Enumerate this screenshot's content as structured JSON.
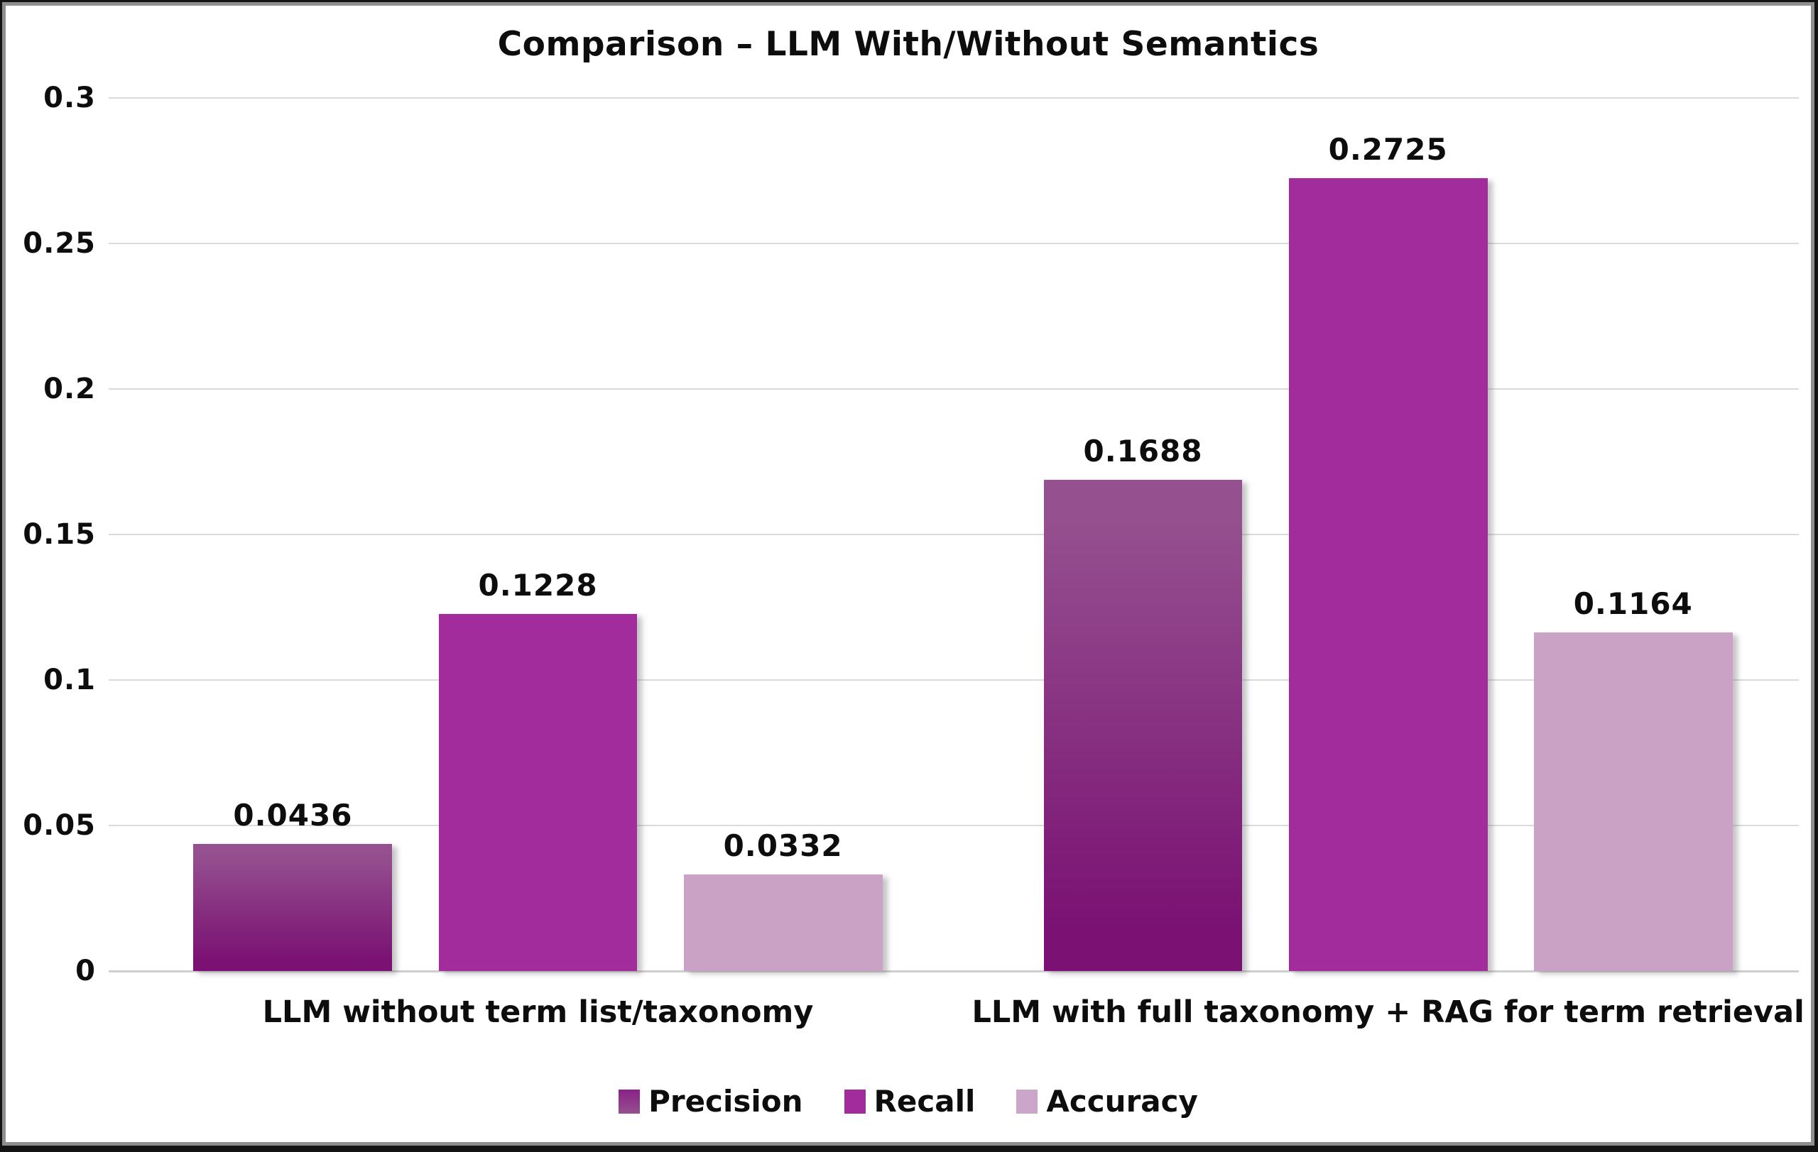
{
  "chart_data": {
    "type": "bar",
    "title": "Comparison – LLM With/Without Semantics",
    "categories": [
      "LLM without term list/taxonomy",
      "LLM with full taxonomy + RAG for term retrieval"
    ],
    "series": [
      {
        "name": "Precision",
        "values": [
          0.0436,
          0.1688
        ],
        "labels": [
          "0.0436",
          "0.1688"
        ],
        "fill_style": "vertical-gradient",
        "color_top": "#95508F",
        "color_bottom": "#7A1173",
        "legend_color": "#8A2188"
      },
      {
        "name": "Recall",
        "values": [
          0.1228,
          0.2725
        ],
        "labels": [
          "0.1228",
          "0.2725"
        ],
        "fill_style": "solid",
        "color": "#A32C9C",
        "legend_color": "#A32C9C"
      },
      {
        "name": "Accuracy",
        "values": [
          0.0332,
          0.1164
        ],
        "labels": [
          "0.0332",
          "0.1164"
        ],
        "fill_style": "solid",
        "color": "#C9A2C6",
        "legend_color": "#CBA6CA"
      }
    ],
    "y_axis": {
      "min": 0,
      "max": 0.3,
      "tick_values": [
        0.3,
        0.25,
        0.2,
        0.15,
        0.1,
        0.05,
        0
      ],
      "tick_labels": [
        "0.3",
        "0.25",
        "0.2",
        "0.15",
        "0.1",
        "0.05",
        "0"
      ]
    },
    "grid": true,
    "legend_position": "bottom"
  },
  "colors": {
    "background": "#ffffff",
    "text": "#0d0d0d",
    "gridline": "#dadada",
    "baseline": "#cfcfcf",
    "frame_outer": "#141414",
    "frame_inner": "#8f8f8f"
  }
}
